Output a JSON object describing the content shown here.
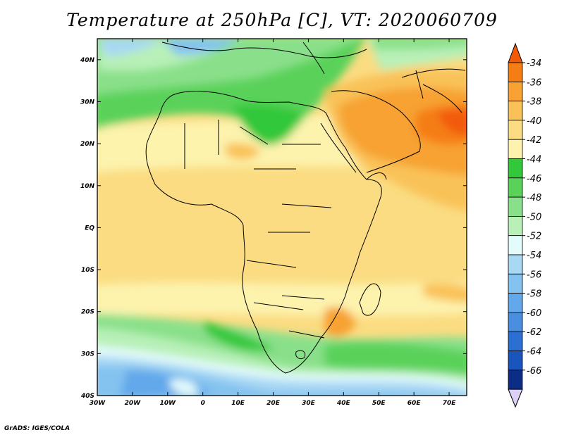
{
  "title": "Temperature at 250hPa [C], VT: 2020060709",
  "credit": "GrADS: IGES/COLA",
  "map": {
    "lon_range": [
      -30,
      75
    ],
    "lat_range": [
      -40,
      45
    ],
    "x_ticks": [
      "30W",
      "20W",
      "10W",
      "0",
      "10E",
      "20E",
      "30E",
      "40E",
      "50E",
      "60E",
      "70E"
    ],
    "y_ticks": [
      "40N",
      "30N",
      "20N",
      "10N",
      "EQ",
      "10S",
      "20S",
      "30S",
      "40S"
    ]
  },
  "colorbar": {
    "labels": [
      "-34",
      "-36",
      "-38",
      "-40",
      "-42",
      "-44",
      "-46",
      "-48",
      "-50",
      "-52",
      "-54",
      "-56",
      "-58",
      "-60",
      "-62",
      "-64",
      "-66"
    ],
    "colors": [
      "#f25a0a",
      "#f57d14",
      "#f7a233",
      "#f9c259",
      "#fbdc82",
      "#fdf3ad",
      "#32c83a",
      "#5ad25a",
      "#8ae08a",
      "#b8f0b8",
      "#e4fbfb",
      "#a8d8f4",
      "#84c2f0",
      "#62a8ea",
      "#4a8ee0",
      "#2c6fd2",
      "#1a55bd",
      "#0c2d86"
    ],
    "arrow_top_color": "#f25a0a",
    "arrow_bottom_color": "#dcd0f4"
  }
}
